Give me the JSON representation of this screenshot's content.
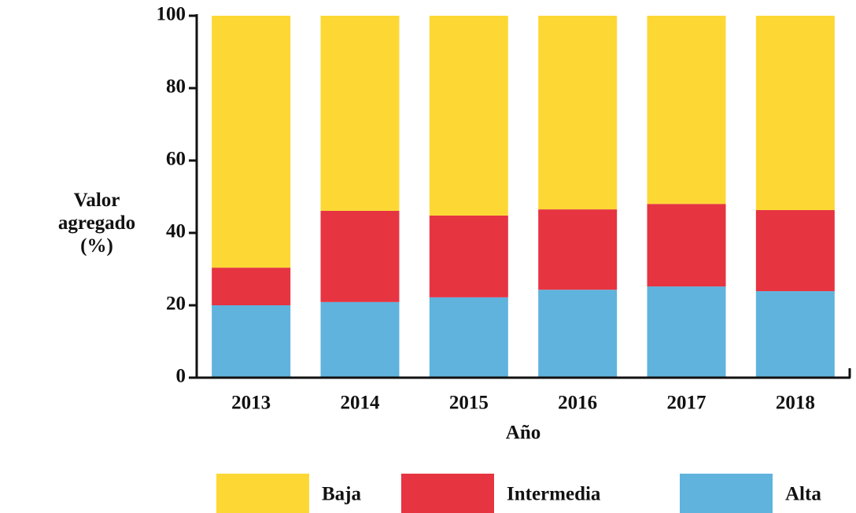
{
  "chart_data": {
    "type": "stacked_bar",
    "x_label": "Año",
    "y_label": "Valor agregado (%)",
    "categories": [
      "2013",
      "2014",
      "2015",
      "2016",
      "2017",
      "2018"
    ],
    "series": [
      {
        "name": "Alta",
        "color": "#60b3dd",
        "values": [
          20.0,
          20.9,
          22.2,
          24.3,
          25.2,
          23.9
        ]
      },
      {
        "name": "Intermedia",
        "color": "#e63441",
        "values": [
          10.4,
          25.2,
          22.6,
          22.2,
          22.8,
          22.4
        ]
      },
      {
        "name": "Baja",
        "color": "#fdd835",
        "values": [
          69.6,
          53.9,
          55.2,
          53.5,
          52.0,
          53.7
        ]
      }
    ],
    "ylim": [
      0,
      100
    ],
    "yticks": [
      0,
      20,
      40,
      60,
      80,
      100
    ],
    "grid": false,
    "legend": "bottom"
  }
}
